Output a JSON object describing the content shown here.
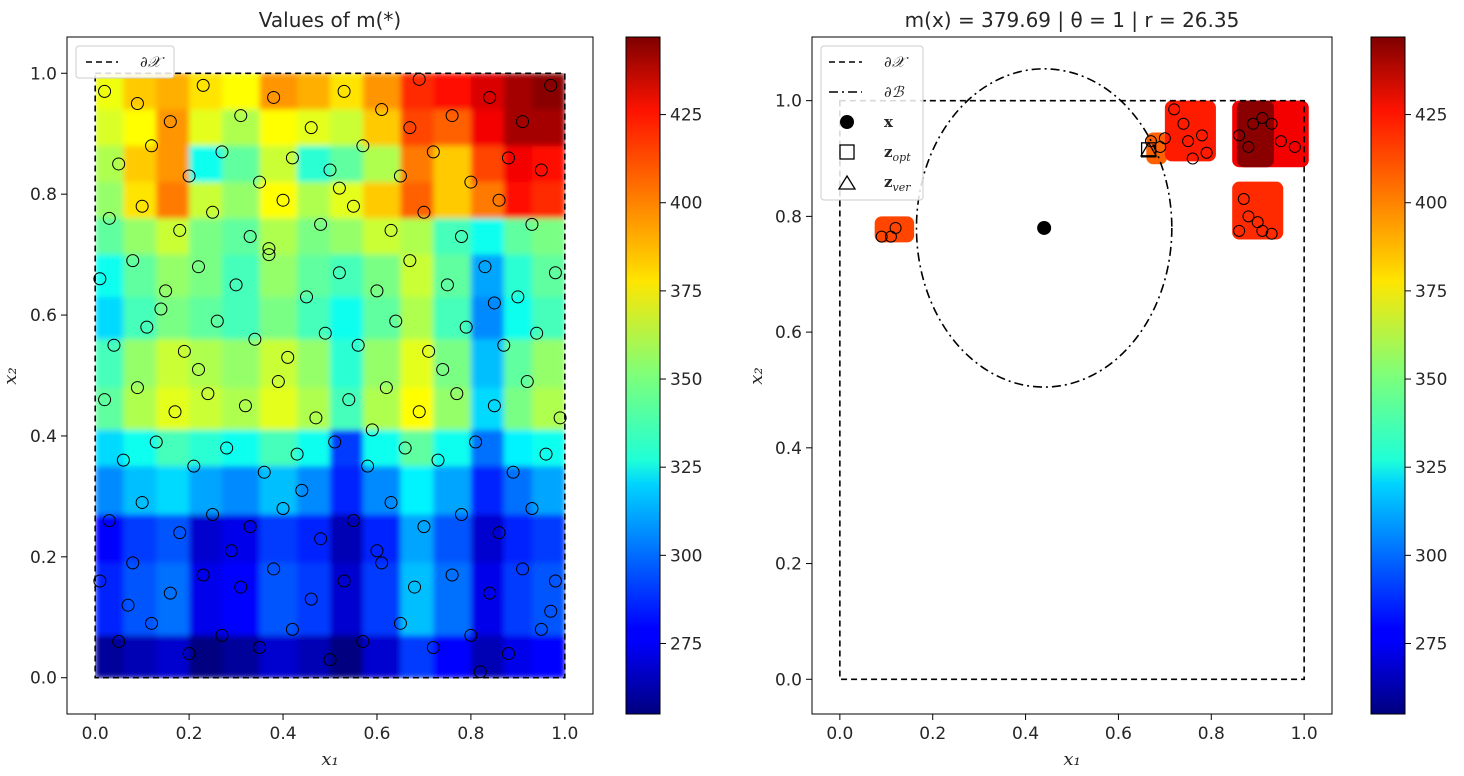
{
  "chart_data": [
    {
      "type": "heatmap",
      "title": "Values of m(*)",
      "xlabel": "x₁",
      "ylabel": "x₂",
      "xlim": [
        -0.06,
        1.06
      ],
      "ylim": [
        -0.06,
        1.06
      ],
      "x_ticks": [
        "0.0",
        "0.2",
        "0.4",
        "0.6",
        "0.8",
        "1.0"
      ],
      "y_ticks": [
        "0.0",
        "0.2",
        "0.4",
        "0.6",
        "0.8",
        "1.0"
      ],
      "x_tick_values": [
        0,
        0.2,
        0.4,
        0.6,
        0.8,
        1.0
      ],
      "y_tick_values": [
        0,
        0.2,
        0.4,
        0.6,
        0.8,
        1.0
      ],
      "legend": [
        {
          "label": "∂𝒳",
          "style": "dashed"
        }
      ],
      "legend_position": "top-left",
      "grid": false,
      "boundary": {
        "x0": 0,
        "x1": 1,
        "y0": 0,
        "y1": 1
      },
      "grid_x_edges": [
        0,
        0.06,
        0.13,
        0.2,
        0.27,
        0.35,
        0.43,
        0.5,
        0.57,
        0.65,
        0.72,
        0.8,
        0.87,
        0.93,
        1.0
      ],
      "grid_y_edges": [
        0,
        0.07,
        0.19,
        0.27,
        0.35,
        0.41,
        0.48,
        0.56,
        0.63,
        0.7,
        0.76,
        0.82,
        0.88,
        0.94,
        1.0
      ],
      "heat_values_top_row_first": [
        [
          372,
          385,
          390,
          380,
          375,
          395,
          390,
          380,
          395,
          415,
          420,
          430,
          440,
          445
        ],
        [
          368,
          375,
          395,
          370,
          360,
          375,
          370,
          365,
          385,
          410,
          405,
          425,
          440,
          440
        ],
        [
          360,
          385,
          395,
          330,
          345,
          365,
          335,
          345,
          360,
          400,
          385,
          410,
          425,
          420
        ],
        [
          355,
          380,
          400,
          365,
          355,
          375,
          360,
          370,
          385,
          405,
          385,
          400,
          420,
          415
        ],
        [
          345,
          355,
          365,
          350,
          345,
          360,
          350,
          355,
          365,
          360,
          340,
          330,
          345,
          350
        ],
        [
          330,
          345,
          355,
          350,
          340,
          355,
          345,
          340,
          350,
          365,
          345,
          310,
          335,
          345
        ],
        [
          320,
          340,
          350,
          345,
          340,
          350,
          340,
          330,
          345,
          360,
          340,
          305,
          330,
          340
        ],
        [
          340,
          355,
          365,
          360,
          355,
          365,
          355,
          335,
          355,
          370,
          350,
          315,
          345,
          355
        ],
        [
          345,
          360,
          370,
          365,
          360,
          370,
          360,
          340,
          360,
          375,
          355,
          320,
          350,
          360
        ],
        [
          320,
          330,
          340,
          335,
          330,
          340,
          330,
          290,
          330,
          345,
          330,
          300,
          325,
          330
        ],
        [
          305,
          315,
          320,
          310,
          305,
          315,
          305,
          285,
          305,
          325,
          310,
          285,
          300,
          310
        ],
        [
          280,
          290,
          295,
          270,
          275,
          290,
          285,
          265,
          285,
          310,
          295,
          270,
          285,
          290
        ],
        [
          285,
          295,
          300,
          275,
          280,
          295,
          290,
          270,
          290,
          315,
          300,
          275,
          290,
          295
        ],
        [
          260,
          265,
          270,
          255,
          260,
          270,
          265,
          255,
          270,
          290,
          280,
          265,
          275,
          280
        ]
      ],
      "sample_points": [
        {
          "x": 0.02,
          "y": 0.97
        },
        {
          "x": 0.09,
          "y": 0.95
        },
        {
          "x": 0.16,
          "y": 0.92
        },
        {
          "x": 0.23,
          "y": 0.98
        },
        {
          "x": 0.31,
          "y": 0.93
        },
        {
          "x": 0.38,
          "y": 0.96
        },
        {
          "x": 0.46,
          "y": 0.91
        },
        {
          "x": 0.53,
          "y": 0.97
        },
        {
          "x": 0.61,
          "y": 0.94
        },
        {
          "x": 0.69,
          "y": 0.99
        },
        {
          "x": 0.76,
          "y": 0.93
        },
        {
          "x": 0.84,
          "y": 0.96
        },
        {
          "x": 0.91,
          "y": 0.92
        },
        {
          "x": 0.97,
          "y": 0.98
        },
        {
          "x": 0.05,
          "y": 0.85
        },
        {
          "x": 0.12,
          "y": 0.88
        },
        {
          "x": 0.2,
          "y": 0.83
        },
        {
          "x": 0.27,
          "y": 0.87
        },
        {
          "x": 0.35,
          "y": 0.82
        },
        {
          "x": 0.42,
          "y": 0.86
        },
        {
          "x": 0.5,
          "y": 0.84
        },
        {
          "x": 0.57,
          "y": 0.88
        },
        {
          "x": 0.65,
          "y": 0.83
        },
        {
          "x": 0.72,
          "y": 0.87
        },
        {
          "x": 0.8,
          "y": 0.82
        },
        {
          "x": 0.88,
          "y": 0.86
        },
        {
          "x": 0.95,
          "y": 0.84
        },
        {
          "x": 0.03,
          "y": 0.76
        },
        {
          "x": 0.1,
          "y": 0.78
        },
        {
          "x": 0.18,
          "y": 0.74
        },
        {
          "x": 0.25,
          "y": 0.77
        },
        {
          "x": 0.33,
          "y": 0.73
        },
        {
          "x": 0.4,
          "y": 0.79
        },
        {
          "x": 0.48,
          "y": 0.75
        },
        {
          "x": 0.55,
          "y": 0.78
        },
        {
          "x": 0.63,
          "y": 0.74
        },
        {
          "x": 0.7,
          "y": 0.77
        },
        {
          "x": 0.78,
          "y": 0.73
        },
        {
          "x": 0.86,
          "y": 0.79
        },
        {
          "x": 0.93,
          "y": 0.75
        },
        {
          "x": 0.01,
          "y": 0.66
        },
        {
          "x": 0.08,
          "y": 0.69
        },
        {
          "x": 0.15,
          "y": 0.64
        },
        {
          "x": 0.22,
          "y": 0.68
        },
        {
          "x": 0.3,
          "y": 0.65
        },
        {
          "x": 0.37,
          "y": 0.7
        },
        {
          "x": 0.45,
          "y": 0.63
        },
        {
          "x": 0.52,
          "y": 0.67
        },
        {
          "x": 0.6,
          "y": 0.64
        },
        {
          "x": 0.67,
          "y": 0.69
        },
        {
          "x": 0.75,
          "y": 0.65
        },
        {
          "x": 0.83,
          "y": 0.68
        },
        {
          "x": 0.9,
          "y": 0.63
        },
        {
          "x": 0.98,
          "y": 0.67
        },
        {
          "x": 0.04,
          "y": 0.55
        },
        {
          "x": 0.11,
          "y": 0.58
        },
        {
          "x": 0.19,
          "y": 0.54
        },
        {
          "x": 0.26,
          "y": 0.59
        },
        {
          "x": 0.34,
          "y": 0.56
        },
        {
          "x": 0.41,
          "y": 0.53
        },
        {
          "x": 0.49,
          "y": 0.57
        },
        {
          "x": 0.56,
          "y": 0.55
        },
        {
          "x": 0.64,
          "y": 0.59
        },
        {
          "x": 0.71,
          "y": 0.54
        },
        {
          "x": 0.79,
          "y": 0.58
        },
        {
          "x": 0.87,
          "y": 0.55
        },
        {
          "x": 0.94,
          "y": 0.57
        },
        {
          "x": 0.02,
          "y": 0.46
        },
        {
          "x": 0.09,
          "y": 0.48
        },
        {
          "x": 0.17,
          "y": 0.44
        },
        {
          "x": 0.24,
          "y": 0.47
        },
        {
          "x": 0.32,
          "y": 0.45
        },
        {
          "x": 0.39,
          "y": 0.49
        },
        {
          "x": 0.47,
          "y": 0.43
        },
        {
          "x": 0.54,
          "y": 0.46
        },
        {
          "x": 0.62,
          "y": 0.48
        },
        {
          "x": 0.69,
          "y": 0.44
        },
        {
          "x": 0.77,
          "y": 0.47
        },
        {
          "x": 0.85,
          "y": 0.45
        },
        {
          "x": 0.92,
          "y": 0.49
        },
        {
          "x": 0.99,
          "y": 0.43
        },
        {
          "x": 0.06,
          "y": 0.36
        },
        {
          "x": 0.13,
          "y": 0.39
        },
        {
          "x": 0.21,
          "y": 0.35
        },
        {
          "x": 0.28,
          "y": 0.38
        },
        {
          "x": 0.36,
          "y": 0.34
        },
        {
          "x": 0.43,
          "y": 0.37
        },
        {
          "x": 0.51,
          "y": 0.39
        },
        {
          "x": 0.58,
          "y": 0.35
        },
        {
          "x": 0.66,
          "y": 0.38
        },
        {
          "x": 0.73,
          "y": 0.36
        },
        {
          "x": 0.81,
          "y": 0.39
        },
        {
          "x": 0.89,
          "y": 0.34
        },
        {
          "x": 0.96,
          "y": 0.37
        },
        {
          "x": 0.03,
          "y": 0.26
        },
        {
          "x": 0.1,
          "y": 0.29
        },
        {
          "x": 0.18,
          "y": 0.24
        },
        {
          "x": 0.25,
          "y": 0.27
        },
        {
          "x": 0.33,
          "y": 0.25
        },
        {
          "x": 0.4,
          "y": 0.28
        },
        {
          "x": 0.48,
          "y": 0.23
        },
        {
          "x": 0.55,
          "y": 0.26
        },
        {
          "x": 0.63,
          "y": 0.29
        },
        {
          "x": 0.7,
          "y": 0.25
        },
        {
          "x": 0.78,
          "y": 0.27
        },
        {
          "x": 0.86,
          "y": 0.24
        },
        {
          "x": 0.93,
          "y": 0.28
        },
        {
          "x": 0.01,
          "y": 0.16
        },
        {
          "x": 0.08,
          "y": 0.19
        },
        {
          "x": 0.16,
          "y": 0.14
        },
        {
          "x": 0.23,
          "y": 0.17
        },
        {
          "x": 0.31,
          "y": 0.15
        },
        {
          "x": 0.38,
          "y": 0.18
        },
        {
          "x": 0.46,
          "y": 0.13
        },
        {
          "x": 0.53,
          "y": 0.16
        },
        {
          "x": 0.61,
          "y": 0.19
        },
        {
          "x": 0.68,
          "y": 0.15
        },
        {
          "x": 0.76,
          "y": 0.17
        },
        {
          "x": 0.84,
          "y": 0.14
        },
        {
          "x": 0.91,
          "y": 0.18
        },
        {
          "x": 0.98,
          "y": 0.16
        },
        {
          "x": 0.05,
          "y": 0.06
        },
        {
          "x": 0.12,
          "y": 0.09
        },
        {
          "x": 0.2,
          "y": 0.04
        },
        {
          "x": 0.27,
          "y": 0.07
        },
        {
          "x": 0.35,
          "y": 0.05
        },
        {
          "x": 0.42,
          "y": 0.08
        },
        {
          "x": 0.5,
          "y": 0.03
        },
        {
          "x": 0.57,
          "y": 0.06
        },
        {
          "x": 0.65,
          "y": 0.09
        },
        {
          "x": 0.72,
          "y": 0.05
        },
        {
          "x": 0.8,
          "y": 0.07
        },
        {
          "x": 0.88,
          "y": 0.04
        },
        {
          "x": 0.95,
          "y": 0.08
        },
        {
          "x": 0.07,
          "y": 0.12
        },
        {
          "x": 0.29,
          "y": 0.21
        },
        {
          "x": 0.44,
          "y": 0.31
        },
        {
          "x": 0.59,
          "y": 0.41
        },
        {
          "x": 0.74,
          "y": 0.51
        },
        {
          "x": 0.14,
          "y": 0.61
        },
        {
          "x": 0.37,
          "y": 0.71
        },
        {
          "x": 0.52,
          "y": 0.81
        },
        {
          "x": 0.67,
          "y": 0.91
        },
        {
          "x": 0.82,
          "y": 0.01
        },
        {
          "x": 0.97,
          "y": 0.11
        },
        {
          "x": 0.22,
          "y": 0.51
        },
        {
          "x": 0.6,
          "y": 0.21
        },
        {
          "x": 0.85,
          "y": 0.62
        }
      ],
      "colorbar": {
        "min": 255,
        "max": 447,
        "ticks": [
          275,
          300,
          325,
          350,
          375,
          400,
          425
        ],
        "colormap": "jet"
      }
    },
    {
      "type": "scatter",
      "title": "m(x) = 379.69 | θ = 1 | r = 26.35",
      "xlabel": "x₁",
      "ylabel": "x₂",
      "xlim": [
        -0.06,
        1.06
      ],
      "ylim": [
        -0.06,
        1.11
      ],
      "x_ticks": [
        "0.0",
        "0.2",
        "0.4",
        "0.6",
        "0.8",
        "1.0"
      ],
      "y_ticks": [
        "0.0",
        "0.2",
        "0.4",
        "0.6",
        "0.8",
        "1.0"
      ],
      "x_tick_values": [
        0,
        0.2,
        0.4,
        0.6,
        0.8,
        1.0
      ],
      "y_tick_values": [
        0,
        0.2,
        0.4,
        0.6,
        0.8,
        1.0
      ],
      "legend": [
        {
          "label": "∂𝒳",
          "style": "dashed"
        },
        {
          "label": "∂ℬ",
          "style": "dashdot"
        },
        {
          "label": "x",
          "style": "filled-circle"
        },
        {
          "label": "z",
          "sub": "opt",
          "style": "open-square"
        },
        {
          "label": "z",
          "sub": "ver",
          "style": "open-triangle"
        }
      ],
      "legend_position": "top-left",
      "grid": false,
      "boundary": {
        "x0": 0,
        "x1": 1,
        "y0": 0,
        "y1": 1
      },
      "ball": {
        "cx": 0.44,
        "cy": 0.78,
        "rx": 0.275,
        "ry": 0.275
      },
      "x_point": {
        "x": 0.44,
        "y": 0.78
      },
      "z_opt": {
        "x": 0.665,
        "y": 0.915
      },
      "z_ver": {
        "x": 0.665,
        "y": 0.915
      },
      "feasible_patches": [
        {
          "x0": 0.075,
          "x1": 0.16,
          "y0": 0.755,
          "y1": 0.8,
          "value": 410
        },
        {
          "x0": 0.66,
          "x1": 0.705,
          "y0": 0.89,
          "y1": 0.945,
          "value": 405
        },
        {
          "x0": 0.7,
          "x1": 0.81,
          "y0": 0.895,
          "y1": 1.0,
          "value": 418
        },
        {
          "x0": 0.845,
          "x1": 1.01,
          "y0": 0.885,
          "y1": 1.0,
          "value": 425
        },
        {
          "x0": 0.855,
          "x1": 0.935,
          "y0": 0.885,
          "y1": 1.0,
          "value": 445
        },
        {
          "x0": 0.845,
          "x1": 0.955,
          "y0": 0.76,
          "y1": 0.86,
          "value": 415
        }
      ],
      "sample_points": [
        {
          "x": 0.09,
          "y": 0.765
        },
        {
          "x": 0.11,
          "y": 0.765
        },
        {
          "x": 0.12,
          "y": 0.78
        },
        {
          "x": 0.67,
          "y": 0.93
        },
        {
          "x": 0.69,
          "y": 0.92
        },
        {
          "x": 0.7,
          "y": 0.935
        },
        {
          "x": 0.72,
          "y": 0.985
        },
        {
          "x": 0.74,
          "y": 0.96
        },
        {
          "x": 0.75,
          "y": 0.93
        },
        {
          "x": 0.76,
          "y": 0.9
        },
        {
          "x": 0.78,
          "y": 0.94
        },
        {
          "x": 0.79,
          "y": 0.91
        },
        {
          "x": 0.86,
          "y": 0.94
        },
        {
          "x": 0.88,
          "y": 0.92
        },
        {
          "x": 0.89,
          "y": 0.96
        },
        {
          "x": 0.91,
          "y": 0.97
        },
        {
          "x": 0.93,
          "y": 0.96
        },
        {
          "x": 0.95,
          "y": 0.93
        },
        {
          "x": 0.98,
          "y": 0.92
        },
        {
          "x": 0.86,
          "y": 0.775
        },
        {
          "x": 0.87,
          "y": 0.83
        },
        {
          "x": 0.88,
          "y": 0.8
        },
        {
          "x": 0.9,
          "y": 0.79
        },
        {
          "x": 0.91,
          "y": 0.775
        },
        {
          "x": 0.93,
          "y": 0.77
        }
      ],
      "colorbar": {
        "min": 255,
        "max": 447,
        "ticks": [
          275,
          300,
          325,
          350,
          375,
          400,
          425
        ],
        "colormap": "jet"
      }
    }
  ]
}
